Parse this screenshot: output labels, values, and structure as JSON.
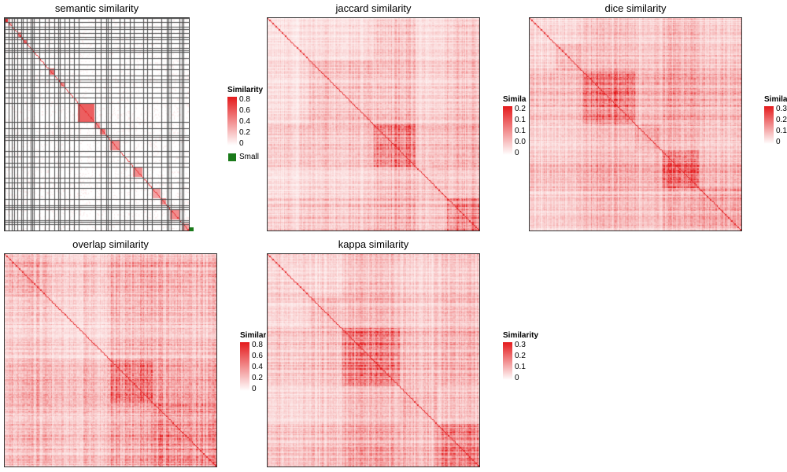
{
  "chart_data": [
    {
      "type": "heatmap",
      "title": "semantic similarity",
      "legend": {
        "title": "Similarity",
        "ticks": [
          "0.8",
          "0.6",
          "0.4",
          "0.2",
          "0"
        ],
        "max": 0.8,
        "extra_label": "Small"
      },
      "matrix_size": 200,
      "block_grid": true,
      "color_low": "#ffffff",
      "color_high": "#e41a1c",
      "small_cluster_color": "#1a7a1a"
    },
    {
      "type": "heatmap",
      "title": "jaccard similarity",
      "legend": {
        "title": "Similarity",
        "ticks": [
          "0.2",
          "0.1",
          "0.1",
          "0.0",
          "0"
        ],
        "max": 0.25
      },
      "matrix_size": 200,
      "color_low": "#ffffff",
      "color_high": "#e41a1c"
    },
    {
      "type": "heatmap",
      "title": "dice similarity",
      "legend": {
        "title": "Similarity",
        "ticks": [
          "0.3",
          "0.2",
          "0.1",
          "0"
        ],
        "max": 0.35
      },
      "matrix_size": 200,
      "color_low": "#ffffff",
      "color_high": "#e41a1c"
    },
    {
      "type": "heatmap",
      "title": "overlap similarity",
      "legend": {
        "title": "Similarity",
        "ticks": [
          "0.8",
          "0.6",
          "0.4",
          "0.2",
          "0"
        ],
        "max": 0.85
      },
      "matrix_size": 200,
      "color_low": "#ffffff",
      "color_high": "#e41a1c"
    },
    {
      "type": "heatmap",
      "title": "kappa similarity",
      "legend": {
        "title": "Similarity",
        "ticks": [
          "0.3",
          "0.2",
          "0.1",
          "0"
        ],
        "max": 0.32
      },
      "matrix_size": 200,
      "color_low": "#ffffff",
      "color_high": "#e41a1c"
    }
  ]
}
